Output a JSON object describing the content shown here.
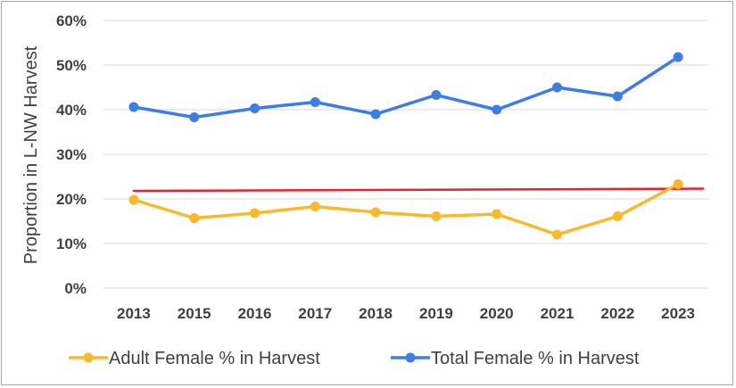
{
  "chart_data": {
    "type": "line",
    "categories": [
      "2013",
      "2015",
      "2016",
      "2017",
      "2018",
      "2019",
      "2020",
      "2021",
      "2022",
      "2023"
    ],
    "series": [
      {
        "name": "Adult Female % in Harvest",
        "color": "#fbb829",
        "values": [
          19.8,
          15.7,
          16.8,
          18.3,
          17.0,
          16.1,
          16.6,
          12.0,
          16.1,
          23.3
        ]
      },
      {
        "name": "Total Female % in Harvest",
        "color": "#3a7ee6",
        "values": [
          40.6,
          38.3,
          40.3,
          41.7,
          39.0,
          43.3,
          40.0,
          45.0,
          43.0,
          51.8
        ]
      }
    ],
    "reference_line": {
      "color": "#e8212b",
      "start": 21.8,
      "end": 22.3
    },
    "ylabel": "Proportion in L-NW Harvest",
    "xlabel": "",
    "ylim": [
      0,
      60
    ],
    "yticks": [
      "0%",
      "10%",
      "20%",
      "30%",
      "40%",
      "50%",
      "60%"
    ],
    "ytick_values": [
      0,
      10,
      20,
      30,
      40,
      50,
      60
    ],
    "grid": true,
    "legend_position": "bottom"
  }
}
